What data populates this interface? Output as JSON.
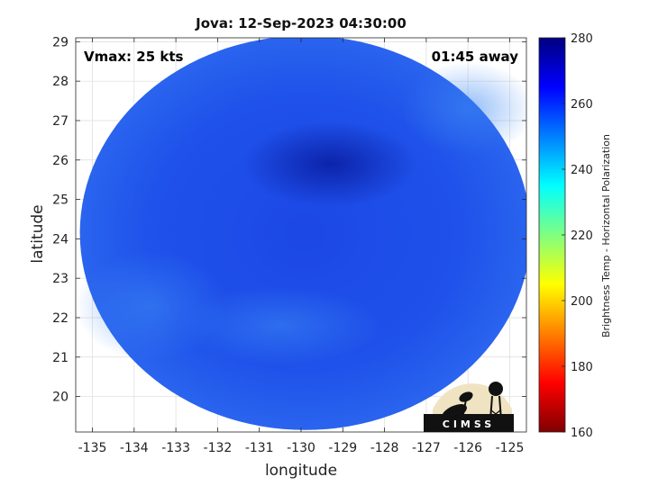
{
  "chart_data": {
    "type": "heatmap",
    "title": "Jova: 12-Sep-2023 04:30:00",
    "xlabel": "longitude",
    "ylabel": "latitude",
    "xlim": [
      -135.4,
      -124.6
    ],
    "ylim": [
      19.1,
      29.1
    ],
    "xticks": [
      -135,
      -134,
      -133,
      -132,
      -131,
      -130,
      -129,
      -128,
      -127,
      -126,
      -125
    ],
    "yticks": [
      20,
      21,
      22,
      23,
      24,
      25,
      26,
      27,
      28,
      29
    ],
    "grid": true,
    "annotations": {
      "vmax": "Vmax: 25 kts",
      "time_away": "01:45 away"
    },
    "swath": {
      "center": [
        -129.9,
        24.15
      ],
      "radius_lon": 5.4,
      "radius_lat": 5.0,
      "typical_value": 258,
      "cold_center": [
        -129.3,
        25.9
      ]
    },
    "colorbar": {
      "label": "Brightness Temp - Horizontal Polarization",
      "min": 160,
      "max": 280,
      "ticks": [
        160,
        180,
        200,
        220,
        240,
        260,
        280
      ],
      "colormap": "jet"
    },
    "logo_text": "CIMSS"
  }
}
